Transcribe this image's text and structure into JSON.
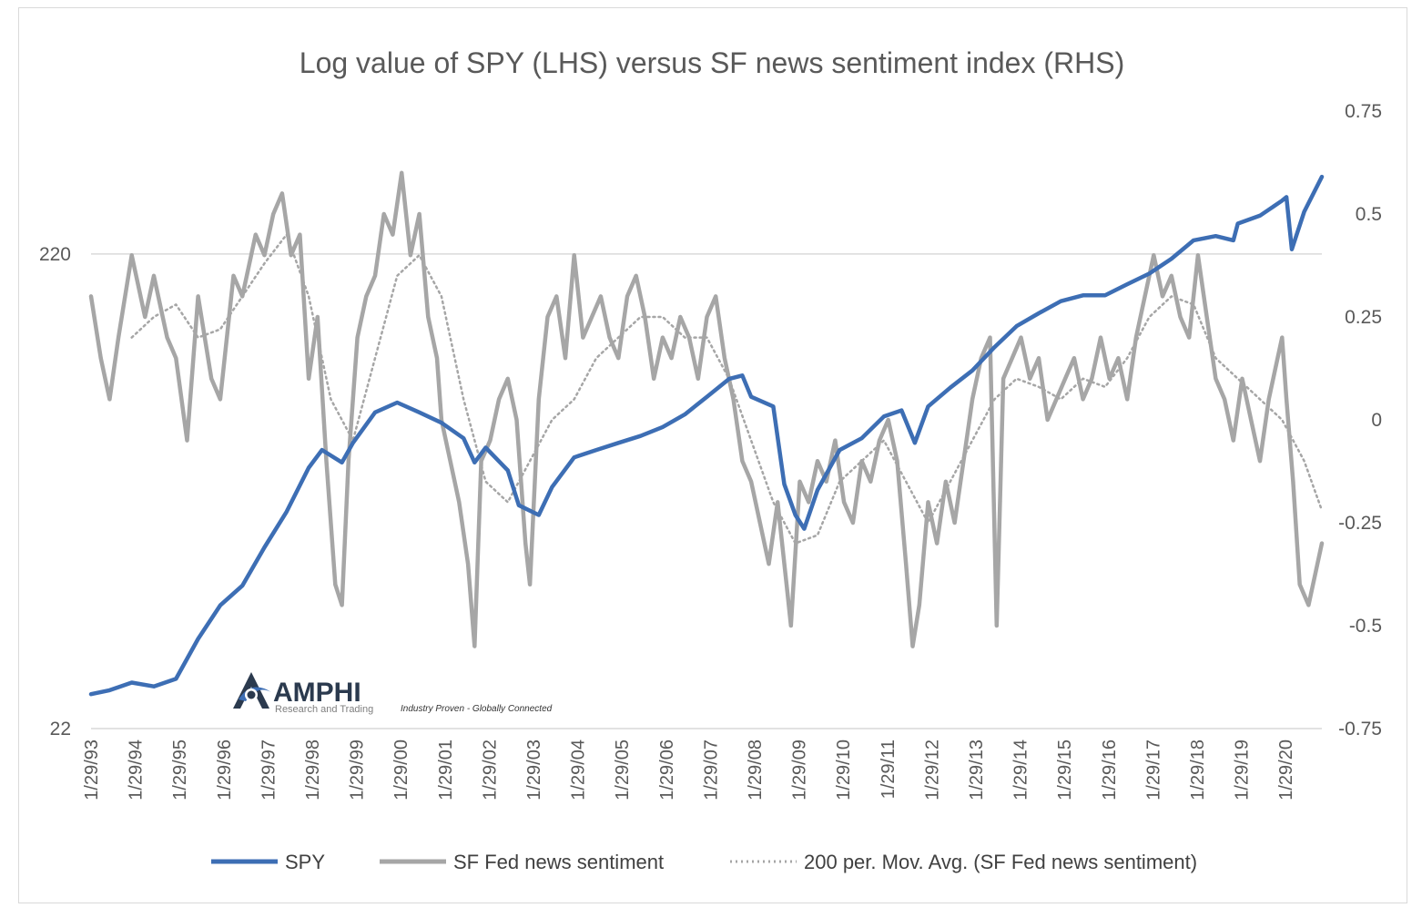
{
  "chart_data": {
    "type": "line",
    "title": "Log value of SPY (LHS) versus SF news sentiment index (RHS)",
    "left_axis": {
      "scale": "log",
      "range": [
        22,
        440
      ],
      "ticks": [
        {
          "value": 22,
          "label": "22"
        },
        {
          "value": 220,
          "label": "220"
        }
      ]
    },
    "right_axis": {
      "scale": "linear",
      "range": [
        -0.75,
        0.75
      ],
      "ticks": [
        -0.75,
        -0.5,
        -0.25,
        0,
        0.25,
        0.5,
        0.75
      ],
      "tick_labels": [
        "-0.75",
        "-0.5",
        "-0.25",
        "0",
        "0.25",
        "0.5",
        "0.75"
      ]
    },
    "grid": "horizontal",
    "x_range": [
      1993.08,
      2020.9
    ],
    "x_ticks": [
      "1/29/93",
      "1/29/94",
      "1/29/95",
      "1/29/96",
      "1/29/97",
      "1/29/98",
      "1/29/99",
      "1/29/00",
      "1/29/01",
      "1/29/02",
      "1/29/03",
      "1/29/04",
      "1/29/05",
      "1/29/06",
      "1/29/07",
      "1/29/08",
      "1/29/09",
      "1/29/10",
      "1/29/11",
      "1/29/12",
      "1/29/13",
      "1/29/14",
      "1/29/15",
      "1/29/16",
      "1/29/17",
      "1/29/18",
      "1/29/19",
      "1/29/20"
    ],
    "legend": {
      "position": "bottom",
      "entries": [
        "SPY",
        "SF Fed news sentiment",
        "200 per. Mov. Avg. (SF Fed news sentiment)"
      ]
    },
    "colors": {
      "spy": "#3d6eb4",
      "sentiment": "#a6a6a6",
      "moving_average": "#a6a6a6",
      "grid": "#d9d9d9"
    },
    "series": [
      {
        "name": "SPY",
        "axis": "left",
        "x": [
          1993.08,
          1993.5,
          1994.0,
          1994.5,
          1995.0,
          1995.5,
          1996.0,
          1996.5,
          1997.0,
          1997.5,
          1998.0,
          1998.3,
          1998.75,
          1999.0,
          1999.5,
          2000.0,
          2000.5,
          2001.0,
          2001.5,
          2001.75,
          2002.0,
          2002.5,
          2002.75,
          2003.2,
          2003.5,
          2004.0,
          2004.5,
          2005.0,
          2005.5,
          2006.0,
          2006.5,
          2007.0,
          2007.5,
          2007.8,
          2008.0,
          2008.5,
          2008.75,
          2009.0,
          2009.2,
          2009.5,
          2010.0,
          2010.5,
          2011.0,
          2011.4,
          2011.7,
          2012.0,
          2012.5,
          2013.0,
          2013.5,
          2014.0,
          2014.5,
          2015.0,
          2015.5,
          2016.0,
          2016.5,
          2017.0,
          2017.5,
          2018.0,
          2018.5,
          2018.9,
          2019.0,
          2019.5,
          2020.0,
          2020.1,
          2020.22,
          2020.5,
          2020.9
        ],
        "y": [
          26,
          26.5,
          27.5,
          27,
          28,
          34,
          40,
          44,
          53,
          63,
          78,
          85,
          80,
          88,
          102,
          107,
          102,
          97,
          90,
          80,
          86,
          77,
          65,
          62,
          71,
          82,
          85,
          88,
          91,
          95,
          101,
          110,
          120,
          122,
          110,
          105,
          72,
          62,
          58,
          70,
          85,
          90,
          100,
          103,
          88,
          105,
          115,
          125,
          140,
          155,
          165,
          175,
          180,
          180,
          190,
          200,
          215,
          235,
          240,
          235,
          255,
          265,
          285,
          290,
          225,
          270,
          320
        ]
      },
      {
        "name": "SF Fed news sentiment",
        "axis": "right",
        "x": [
          1993.08,
          1993.3,
          1993.5,
          1993.7,
          1994.0,
          1994.3,
          1994.5,
          1994.8,
          1995.0,
          1995.25,
          1995.5,
          1995.8,
          1996.0,
          1996.3,
          1996.5,
          1996.8,
          1997.0,
          1997.2,
          1997.4,
          1997.6,
          1997.8,
          1998.0,
          1998.2,
          1998.4,
          1998.6,
          1998.75,
          1998.9,
          1999.1,
          1999.3,
          1999.5,
          1999.7,
          1999.9,
          2000.1,
          2000.3,
          2000.5,
          2000.7,
          2000.9,
          2001.0,
          2001.2,
          2001.4,
          2001.6,
          2001.75,
          2001.9,
          2002.1,
          2002.3,
          2002.5,
          2002.7,
          2002.9,
          2003.0,
          2003.2,
          2003.4,
          2003.6,
          2003.8,
          2004.0,
          2004.2,
          2004.4,
          2004.6,
          2004.8,
          2005.0,
          2005.2,
          2005.4,
          2005.6,
          2005.8,
          2006.0,
          2006.2,
          2006.4,
          2006.6,
          2006.8,
          2007.0,
          2007.2,
          2007.4,
          2007.6,
          2007.8,
          2008.0,
          2008.2,
          2008.4,
          2008.6,
          2008.8,
          2008.9,
          2009.1,
          2009.3,
          2009.5,
          2009.7,
          2009.9,
          2010.1,
          2010.3,
          2010.5,
          2010.7,
          2010.9,
          2011.1,
          2011.3,
          2011.5,
          2011.65,
          2011.8,
          2012.0,
          2012.2,
          2012.4,
          2012.6,
          2012.8,
          2013.0,
          2013.2,
          2013.4,
          2013.55,
          2013.7,
          2013.9,
          2014.1,
          2014.3,
          2014.5,
          2014.7,
          2014.9,
          2015.1,
          2015.3,
          2015.5,
          2015.7,
          2015.9,
          2016.1,
          2016.3,
          2016.5,
          2016.7,
          2016.9,
          2017.1,
          2017.3,
          2017.5,
          2017.7,
          2017.9,
          2018.1,
          2018.3,
          2018.5,
          2018.7,
          2018.9,
          2019.1,
          2019.3,
          2019.5,
          2019.7,
          2019.9,
          2020.0,
          2020.1,
          2020.25,
          2020.4,
          2020.6,
          2020.9
        ],
        "y": [
          0.3,
          0.15,
          0.05,
          0.2,
          0.4,
          0.25,
          0.35,
          0.2,
          0.15,
          -0.05,
          0.3,
          0.1,
          0.05,
          0.35,
          0.3,
          0.45,
          0.4,
          0.5,
          0.55,
          0.4,
          0.45,
          0.1,
          0.25,
          -0.1,
          -0.4,
          -0.45,
          -0.1,
          0.2,
          0.3,
          0.35,
          0.5,
          0.45,
          0.6,
          0.4,
          0.5,
          0.25,
          0.15,
          0.0,
          -0.1,
          -0.2,
          -0.35,
          -0.55,
          -0.1,
          -0.05,
          0.05,
          0.1,
          0.0,
          -0.3,
          -0.4,
          0.05,
          0.25,
          0.3,
          0.15,
          0.4,
          0.2,
          0.25,
          0.3,
          0.2,
          0.15,
          0.3,
          0.35,
          0.25,
          0.1,
          0.2,
          0.15,
          0.25,
          0.2,
          0.1,
          0.25,
          0.3,
          0.15,
          0.05,
          -0.1,
          -0.15,
          -0.25,
          -0.35,
          -0.2,
          -0.4,
          -0.5,
          -0.15,
          -0.2,
          -0.1,
          -0.15,
          -0.05,
          -0.2,
          -0.25,
          -0.1,
          -0.15,
          -0.05,
          0.0,
          -0.1,
          -0.35,
          -0.55,
          -0.45,
          -0.2,
          -0.3,
          -0.15,
          -0.25,
          -0.1,
          0.05,
          0.15,
          0.2,
          -0.5,
          0.1,
          0.15,
          0.2,
          0.1,
          0.15,
          0.0,
          0.05,
          0.1,
          0.15,
          0.05,
          0.1,
          0.2,
          0.1,
          0.15,
          0.05,
          0.2,
          0.3,
          0.4,
          0.3,
          0.35,
          0.25,
          0.2,
          0.4,
          0.25,
          0.1,
          0.05,
          -0.05,
          0.1,
          0.0,
          -0.1,
          0.05,
          0.15,
          0.2,
          0.05,
          -0.15,
          -0.4,
          -0.45,
          -0.3
        ]
      },
      {
        "name": "200 per. Mov. Avg. (SF Fed news sentiment)",
        "axis": "right",
        "x": [
          1994.0,
          1994.5,
          1995.0,
          1995.5,
          1996.0,
          1996.5,
          1997.0,
          1997.5,
          1998.0,
          1998.5,
          1999.0,
          1999.5,
          2000.0,
          2000.5,
          2001.0,
          2001.5,
          2002.0,
          2002.5,
          2003.0,
          2003.5,
          2004.0,
          2004.5,
          2005.0,
          2005.5,
          2006.0,
          2006.5,
          2007.0,
          2007.5,
          2008.0,
          2008.5,
          2009.0,
          2009.5,
          2010.0,
          2010.5,
          2011.0,
          2011.5,
          2012.0,
          2012.5,
          2013.0,
          2013.5,
          2014.0,
          2014.5,
          2015.0,
          2015.5,
          2016.0,
          2016.5,
          2017.0,
          2017.5,
          2018.0,
          2018.5,
          2019.0,
          2019.5,
          2020.0,
          2020.5,
          2020.9
        ],
        "y": [
          0.2,
          0.25,
          0.28,
          0.2,
          0.22,
          0.3,
          0.38,
          0.45,
          0.3,
          0.05,
          -0.05,
          0.15,
          0.35,
          0.4,
          0.3,
          0.05,
          -0.15,
          -0.2,
          -0.1,
          0.0,
          0.05,
          0.15,
          0.2,
          0.25,
          0.25,
          0.2,
          0.2,
          0.1,
          -0.05,
          -0.2,
          -0.3,
          -0.28,
          -0.15,
          -0.1,
          -0.05,
          -0.15,
          -0.25,
          -0.15,
          -0.05,
          0.05,
          0.1,
          0.08,
          0.05,
          0.1,
          0.08,
          0.15,
          0.25,
          0.3,
          0.28,
          0.15,
          0.1,
          0.05,
          0.0,
          -0.1,
          -0.22
        ]
      }
    ]
  },
  "logo": {
    "brand": "AMPHI",
    "subtitle": "Research and Trading",
    "tagline": "Industry Proven - Globally Connected"
  }
}
